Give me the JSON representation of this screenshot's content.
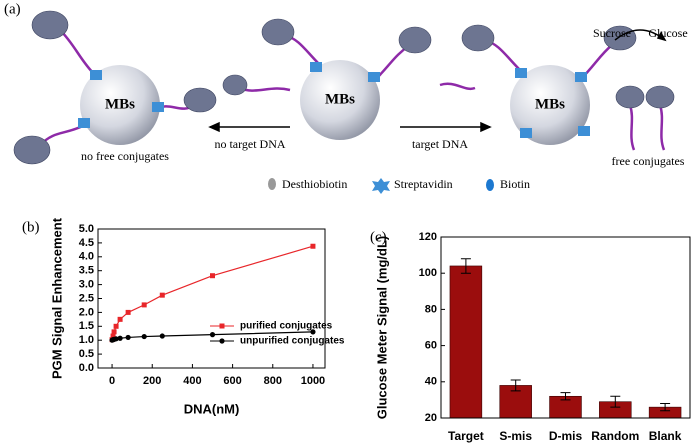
{
  "panel_labels": [
    "(a)",
    "(b)",
    "(c)"
  ],
  "diagram": {
    "spheres": [
      "MBs",
      "MBs",
      "MBs"
    ],
    "left_arrow": "no target DNA",
    "right_arrow": "target DNA",
    "left_caption": "no free conjugates",
    "right_caption": "free conjugates",
    "reaction": {
      "substrate": "Sucrose",
      "product": "Glucose"
    },
    "legend": [
      "Desthiobiotin",
      "Streptavidin",
      "Biotin"
    ]
  },
  "chart_data": [
    {
      "type": "line",
      "xlabel": "DNA(nM)",
      "ylabel": "PGM Signal Enhancement",
      "x": [
        0,
        5,
        10,
        20,
        40,
        80,
        160,
        250,
        500,
        1000
      ],
      "series": [
        {
          "name": "purified conjugates",
          "color": "#e8262a",
          "marker": "square",
          "values": [
            1.02,
            1.15,
            1.3,
            1.5,
            1.75,
            2.0,
            2.27,
            2.62,
            3.32,
            4.38
          ]
        },
        {
          "name": "unpurified conjugates",
          "color": "#000000",
          "marker": "circle",
          "values": [
            1.0,
            1.02,
            1.03,
            1.05,
            1.07,
            1.1,
            1.13,
            1.15,
            1.2,
            1.3
          ]
        }
      ],
      "xlim": [
        -70,
        1060
      ],
      "xticks": [
        0,
        200,
        400,
        600,
        800,
        1000
      ],
      "ylim": [
        0,
        5
      ],
      "yticks": [
        {
          "value": 0,
          "label": "0.0"
        },
        0.5,
        {
          "value": 1,
          "label": "1.0"
        },
        1.5,
        {
          "value": 2,
          "label": "2.0"
        },
        2.5,
        {
          "value": 3,
          "label": "3.0"
        },
        3.5,
        {
          "value": 4,
          "label": "4.0"
        },
        4.5,
        {
          "value": 5,
          "label": "5.0"
        }
      ],
      "legend": "lower right"
    },
    {
      "type": "bar",
      "ylabel": "Glucose Meter Signal (mg/dL)",
      "categories": [
        "Target",
        "S-mis",
        "D-mis",
        "Random",
        "Blank"
      ],
      "values": [
        104,
        38,
        32,
        29,
        26
      ],
      "errors": [
        4,
        3,
        2,
        3,
        2
      ],
      "color": "#9b0d0d",
      "ylim": [
        20,
        120
      ],
      "yticks": [
        20,
        40,
        60,
        80,
        100,
        120
      ]
    }
  ]
}
